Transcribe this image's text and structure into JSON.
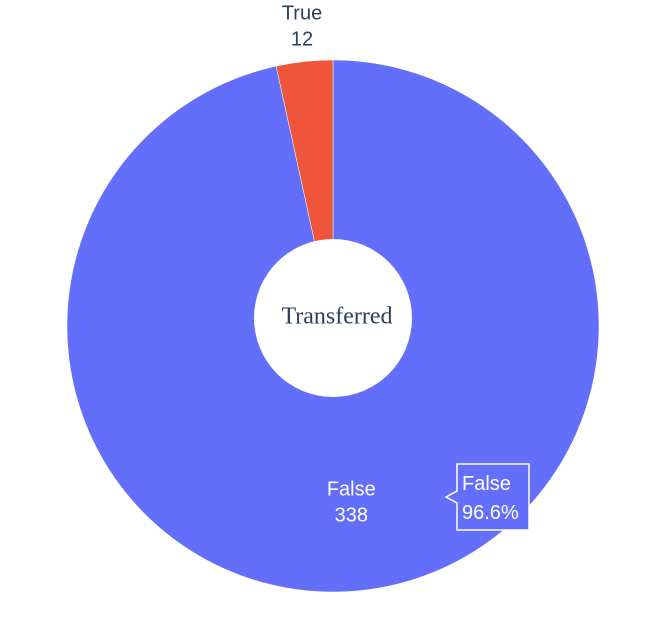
{
  "chart_data": {
    "type": "pie",
    "hole": true,
    "center_title": "Transferred",
    "labels": [
      "False",
      "True"
    ],
    "values": [
      338,
      12
    ],
    "colors": [
      "#636efa",
      "#ef553b"
    ],
    "text_colors": [
      "#ffffff",
      "#2a3f5f"
    ],
    "hover": {
      "label": "False",
      "percent": "96.6%",
      "background": "#636efa",
      "border": "#ffffff"
    }
  }
}
